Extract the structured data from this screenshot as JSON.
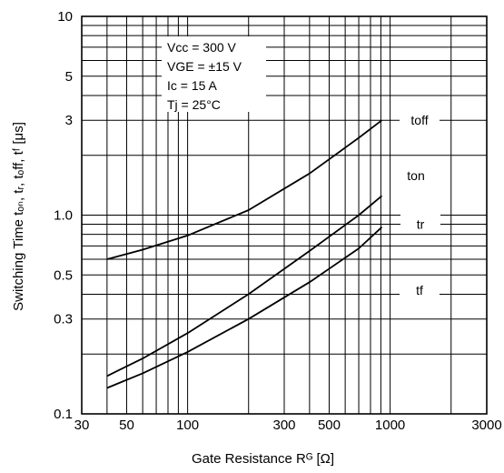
{
  "chart_data": {
    "type": "line",
    "xlabel": "Gate Resistance Rᴳ [Ω]",
    "ylabel": "Switching Time tₒₙ, tᵣ, tₒff, tᶠ [μs]",
    "xscale": "log",
    "yscale": "log",
    "xlim": [
      30,
      3000
    ],
    "ylim": [
      0.1,
      10
    ],
    "xticks": [
      "30",
      "50",
      "100",
      "300",
      "500",
      "1000",
      "3000"
    ],
    "yticks": [
      "0.1",
      "0.3",
      "0.5",
      "1.0",
      "3",
      "5",
      "10"
    ],
    "grid": true,
    "conditions": [
      "Vcc = 300 V",
      "VGE = ±15  V",
      "Ic  =  15  A",
      "Tj  =  25°C"
    ],
    "series": [
      {
        "name": "toff",
        "x": [
          40,
          60,
          100,
          200,
          400,
          700,
          910
        ],
        "y": [
          0.6,
          0.67,
          0.79,
          1.06,
          1.62,
          2.45,
          3.0
        ]
      },
      {
        "name": "ton",
        "x": [
          40,
          60,
          100,
          200,
          400,
          700,
          910
        ],
        "y": [
          0.155,
          0.19,
          0.255,
          0.4,
          0.66,
          1.0,
          1.25
        ]
      },
      {
        "name": "tr",
        "x": [
          40,
          60,
          100,
          200,
          400,
          700,
          910
        ],
        "y": [
          0.135,
          0.16,
          0.205,
          0.3,
          0.46,
          0.68,
          0.87
        ]
      }
    ]
  }
}
